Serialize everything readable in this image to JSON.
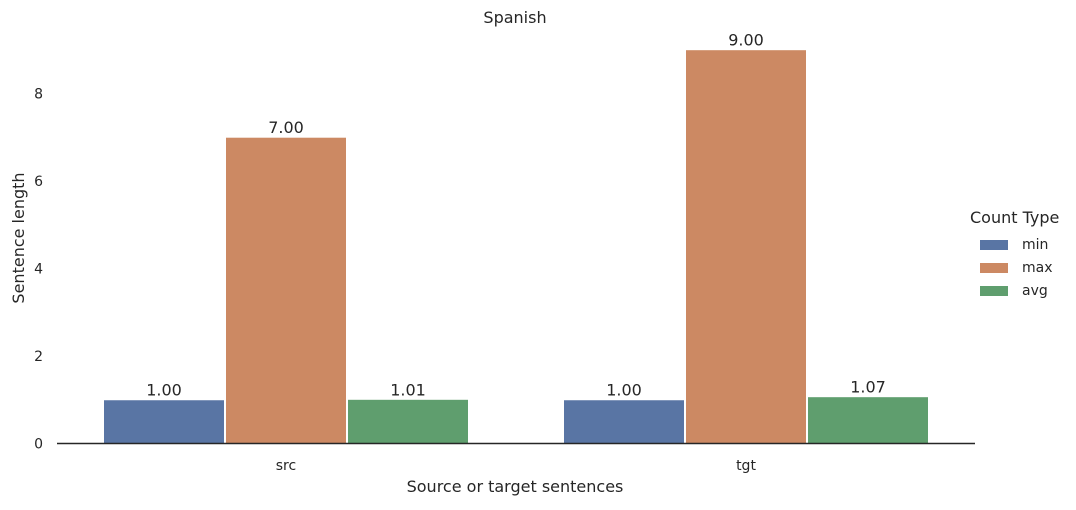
{
  "chart_data": {
    "type": "bar",
    "title": "Spanish",
    "xlabel": "Source or target sentences",
    "ylabel": "Sentence length",
    "categories": [
      "src",
      "tgt"
    ],
    "series": [
      {
        "name": "min",
        "values": [
          1.0,
          1.0
        ],
        "labels": [
          "1.00",
          "1.00"
        ],
        "color": "#5975a4"
      },
      {
        "name": "max",
        "values": [
          7.0,
          9.0
        ],
        "labels": [
          "7.00",
          "9.00"
        ],
        "color": "#cc8963"
      },
      {
        "name": "avg",
        "values": [
          1.01,
          1.07
        ],
        "labels": [
          "1.01",
          "1.07"
        ],
        "color": "#5f9e6e"
      }
    ],
    "ylim": [
      0,
      9.45
    ],
    "yticks": [
      "0",
      "2",
      "4",
      "6",
      "8"
    ],
    "legend": {
      "title": "Count Type",
      "placement": "right"
    },
    "grid": false
  }
}
